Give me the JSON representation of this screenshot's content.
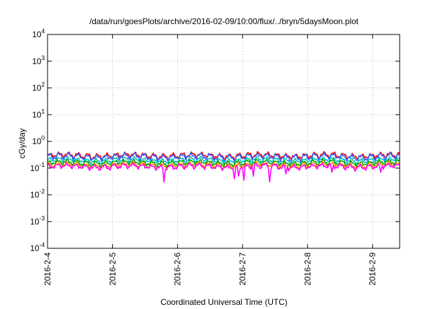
{
  "chart_data": {
    "type": "line",
    "title": "/data/run/goesPlots/archive/2016-02-09/10:00/flux/../bryn/5daysMoon.plot",
    "xlabel": "Coordinated Universal Time (UTC)",
    "ylabel": "cGy/day",
    "x_range": [
      "2016-02-04T00:00",
      "2016-02-09T10:00"
    ],
    "ylim": [
      0.0001,
      10000
    ],
    "y_scale": "log",
    "grid": true,
    "legend": "none",
    "x_ticks": [
      "2016-2-4",
      "2016-2-5",
      "2016-2-6",
      "2016-2-7",
      "2016-2-8",
      "2016-2-9"
    ],
    "y_ticks": [
      {
        "base": "10",
        "exp": "-4"
      },
      {
        "base": "10",
        "exp": "-3"
      },
      {
        "base": "10",
        "exp": "-2"
      },
      {
        "base": "10",
        "exp": "-1"
      },
      {
        "base": "10",
        "exp": "0"
      },
      {
        "base": "10",
        "exp": "1"
      },
      {
        "base": "10",
        "exp": "2"
      },
      {
        "base": "10",
        "exp": "3"
      },
      {
        "base": "10",
        "exp": "4"
      }
    ],
    "series": [
      {
        "color": "#ff0000",
        "base": 0.3,
        "amplitude": 0.1,
        "dips": false
      },
      {
        "color": "#3060ff",
        "base": 0.27,
        "amplitude": 0.1,
        "dips": false
      },
      {
        "color": "#00c0c0",
        "base": 0.2,
        "amplitude": 0.06,
        "dips": false
      },
      {
        "color": "#00a000",
        "base": 0.16,
        "amplitude": 0.05,
        "dips": false
      },
      {
        "color": "#ff8000",
        "base": 0.13,
        "amplitude": 0.04,
        "dips": false
      },
      {
        "color": "#ff00ff",
        "base": 0.115,
        "amplitude": 0.035,
        "dips": true
      }
    ],
    "dips": [
      {
        "time": "2016-02-05T19:00",
        "value": 0.03
      },
      {
        "time": "2016-02-06T21:00",
        "value": 0.04
      },
      {
        "time": "2016-02-06T22:30",
        "value": 0.05
      },
      {
        "time": "2016-02-07T00:30",
        "value": 0.035
      },
      {
        "time": "2016-02-07T04:00",
        "value": 0.05
      },
      {
        "time": "2016-02-07T10:00",
        "value": 0.03
      },
      {
        "time": "2016-02-07T16:00",
        "value": 0.06
      },
      {
        "time": "2016-02-08T09:00",
        "value": 0.07
      },
      {
        "time": "2016-02-09T03:00",
        "value": 0.07
      }
    ]
  }
}
